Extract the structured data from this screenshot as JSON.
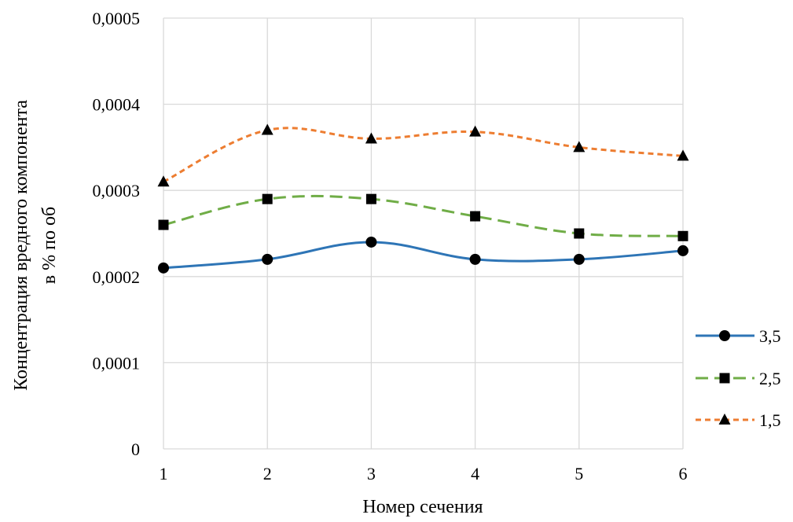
{
  "chart_data": {
    "type": "line",
    "title": "",
    "xlabel": "Номер сечения",
    "ylabel_lines": [
      "Концентрация вредного компонента",
      "в % по об"
    ],
    "categories": [
      "1",
      "2",
      "3",
      "4",
      "5",
      "6"
    ],
    "x": [
      1,
      2,
      3,
      4,
      5,
      6
    ],
    "ylim": [
      0,
      0.0005
    ],
    "yticks": [
      0,
      0.0001,
      0.0002,
      0.0003,
      0.0004,
      0.0005
    ],
    "ytick_labels": [
      "0",
      "0,0001",
      "0,0002",
      "0,0003",
      "0,0004",
      "0,0005"
    ],
    "grid": true,
    "smooth": true,
    "legend_position": "right",
    "series": [
      {
        "name": "3,5",
        "values": [
          0.00021,
          0.00022,
          0.00024,
          0.00022,
          0.00022,
          0.00023
        ],
        "color": "#2e75b6",
        "dash": "solid",
        "marker": "circle"
      },
      {
        "name": "2,5",
        "values": [
          0.00026,
          0.00029,
          0.00029,
          0.00027,
          0.00025,
          0.000247
        ],
        "color": "#70ad47",
        "dash": "long-dash",
        "marker": "square"
      },
      {
        "name": "1,5",
        "values": [
          0.00031,
          0.00037,
          0.00036,
          0.000368,
          0.00035,
          0.00034
        ],
        "color": "#ed7d31",
        "dash": "short-dash",
        "marker": "triangle"
      }
    ]
  }
}
